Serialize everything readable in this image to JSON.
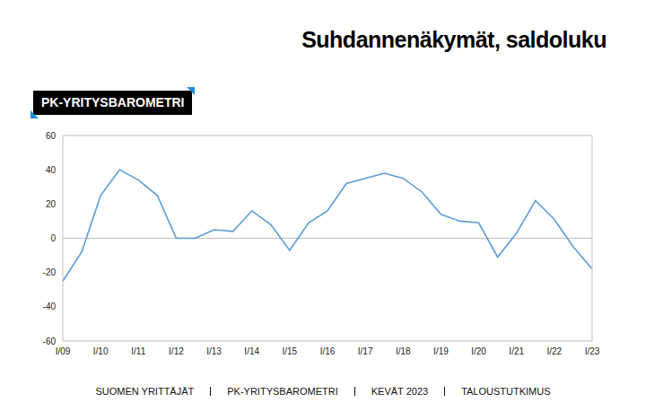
{
  "chart_data": {
    "type": "line",
    "title": "Suhdannenäkymät, saldoluku",
    "badge": "PK-YRITYSBAROMETRI",
    "footer": [
      "SUOMEN YRITTÄJÄT",
      "PK-YRITYSBAROMETRI",
      "KEVÄT 2023",
      "TALOUSTUTKIMUS"
    ],
    "categories": [
      "I/09",
      null,
      "I/10",
      null,
      "I/11",
      null,
      "I/12",
      null,
      "I/13",
      null,
      "I/14",
      null,
      "I/15",
      null,
      "I/16",
      null,
      "I/17",
      null,
      "I/18",
      null,
      "I/19",
      null,
      "I/20",
      null,
      "I/21",
      null,
      "I/22",
      null,
      "I/23"
    ],
    "values": [
      -25,
      -8,
      25,
      40,
      34,
      25,
      0,
      0,
      5,
      4,
      16,
      8,
      -7,
      9,
      16,
      32,
      35,
      38,
      35,
      27,
      14,
      10,
      9,
      -11,
      3,
      22,
      11,
      -5,
      -18
    ],
    "color": "#5b9bd5",
    "ylim": [
      -60,
      60
    ],
    "yticks": [
      -60,
      -40,
      -20,
      0,
      20,
      40,
      60
    ],
    "grid": false
  }
}
